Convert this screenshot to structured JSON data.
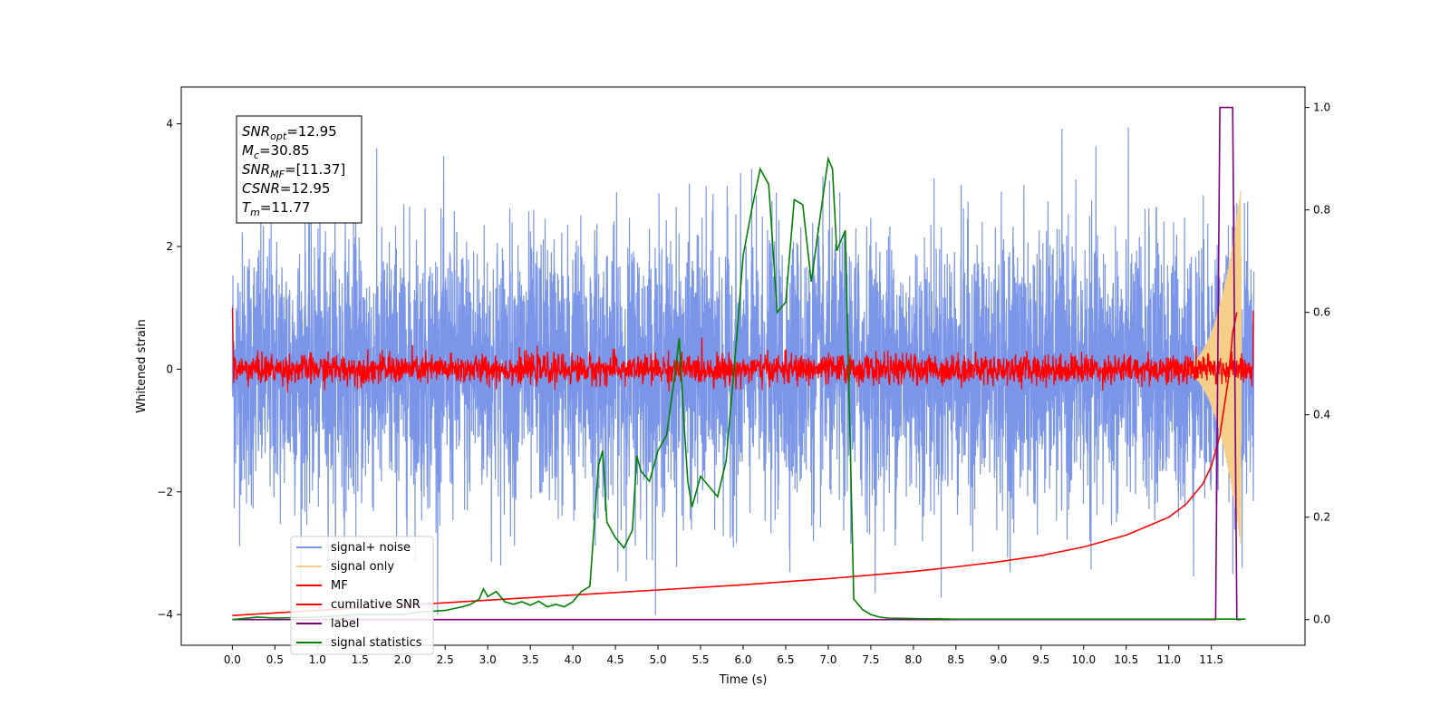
{
  "chart_data": {
    "type": "line",
    "title": "",
    "xlabel": "Time (s)",
    "ylabel_left": "Whitened strain",
    "ylabel_right": "",
    "xlim": [
      -0.6,
      12.6
    ],
    "ylim_left": [
      -4.5,
      4.6
    ],
    "ylim_right": [
      -0.05,
      1.04
    ],
    "x_ticks": [
      "0.0",
      "0.5",
      "1.0",
      "1.5",
      "2.0",
      "2.5",
      "3.0",
      "3.5",
      "4.0",
      "4.5",
      "5.0",
      "5.5",
      "6.0",
      "6.5",
      "7.0",
      "7.5",
      "8.0",
      "8.5",
      "9.0",
      "9.5",
      "10.0",
      "10.5",
      "11.0",
      "11.5"
    ],
    "y_ticks_left": [
      "4",
      "2",
      "0",
      "−2",
      "−4"
    ],
    "y_ticks_right": [
      "1.0",
      "0.8",
      "0.6",
      "0.4",
      "0.2",
      "0.0"
    ],
    "annotation": {
      "lines": [
        {
          "sym": "SNR",
          "sub": "opt",
          "rest": "=12.95"
        },
        {
          "sym": "M",
          "sub": "c",
          "rest": "=30.85"
        },
        {
          "sym": "SNR",
          "sub": "MF",
          "rest": "=[11.37]"
        },
        {
          "sym": "CSNR",
          "sub": "",
          "rest": "=12.95"
        },
        {
          "sym": "T",
          "sub": "m",
          "rest": "=11.77"
        }
      ]
    },
    "legend": {
      "placement": "lower-left",
      "entries": [
        {
          "label": "signal+ noise",
          "color": "#7b96e8"
        },
        {
          "label": "signal only",
          "color": "#f5cf8a"
        },
        {
          "label": "MF",
          "color": "#ff0000"
        },
        {
          "label": "cumilative SNR",
          "color": "#ff0000"
        },
        {
          "label": "label",
          "color": "#800080"
        },
        {
          "label": "signal statistics",
          "color": "#008000"
        }
      ]
    },
    "series": [
      {
        "name": "signal+ noise",
        "axis": "left",
        "style": "noise",
        "x_range": [
          0,
          12.0
        ],
        "amplitude": 1.1,
        "color": "#7b96e8"
      },
      {
        "name": "signal only",
        "axis": "left",
        "style": "chirp",
        "x_range": [
          11.0,
          11.85
        ],
        "max_amplitude": 3.0,
        "color": "#f5cf8a"
      },
      {
        "name": "MF",
        "axis": "left",
        "style": "mf",
        "x_range": [
          0,
          12.0
        ],
        "amplitude": 0.12,
        "color": "#ff0000"
      },
      {
        "name": "cumilative SNR",
        "axis": "right",
        "color": "#ff0000",
        "x": [
          0.0,
          1.0,
          2.0,
          3.0,
          4.0,
          5.0,
          6.0,
          7.0,
          7.5,
          8.0,
          8.5,
          9.0,
          9.5,
          10.0,
          10.5,
          11.0,
          11.2,
          11.4,
          11.5,
          11.6,
          11.7,
          11.75,
          11.8
        ],
        "y": [
          0.008,
          0.018,
          0.028,
          0.038,
          0.048,
          0.058,
          0.068,
          0.08,
          0.087,
          0.094,
          0.103,
          0.113,
          0.125,
          0.142,
          0.165,
          0.2,
          0.225,
          0.265,
          0.3,
          0.36,
          0.47,
          0.56,
          0.6
        ]
      },
      {
        "name": "label",
        "axis": "right",
        "color": "#800080",
        "x": [
          0.0,
          11.55,
          11.6,
          11.75,
          11.8,
          11.85
        ],
        "y": [
          0.0,
          0.0,
          1.0,
          1.0,
          0.0,
          0.0
        ]
      },
      {
        "name": "signal statistics",
        "axis": "right",
        "color": "#008000",
        "x": [
          0.0,
          0.3,
          0.5,
          1.0,
          1.5,
          2.0,
          2.2,
          2.5,
          2.7,
          2.8,
          2.9,
          2.95,
          3.0,
          3.1,
          3.2,
          3.3,
          3.4,
          3.5,
          3.6,
          3.7,
          3.8,
          3.9,
          4.0,
          4.1,
          4.2,
          4.3,
          4.35,
          4.4,
          4.5,
          4.6,
          4.7,
          4.75,
          4.8,
          4.9,
          5.0,
          5.1,
          5.2,
          5.25,
          5.3,
          5.35,
          5.4,
          5.5,
          5.6,
          5.7,
          5.8,
          5.9,
          6.0,
          6.1,
          6.2,
          6.3,
          6.4,
          6.5,
          6.6,
          6.7,
          6.8,
          6.9,
          7.0,
          7.05,
          7.1,
          7.2,
          7.3,
          7.35,
          7.4,
          7.5,
          7.6,
          7.7,
          8.0,
          8.5,
          9.0,
          10.0,
          11.0,
          11.8,
          11.9
        ],
        "y": [
          0.0,
          0.005,
          0.003,
          0.005,
          0.01,
          0.01,
          0.015,
          0.018,
          0.025,
          0.03,
          0.04,
          0.06,
          0.045,
          0.055,
          0.035,
          0.03,
          0.035,
          0.028,
          0.036,
          0.025,
          0.03,
          0.025,
          0.035,
          0.055,
          0.065,
          0.3,
          0.33,
          0.19,
          0.16,
          0.14,
          0.175,
          0.32,
          0.29,
          0.27,
          0.33,
          0.36,
          0.48,
          0.55,
          0.4,
          0.27,
          0.22,
          0.28,
          0.26,
          0.24,
          0.31,
          0.5,
          0.71,
          0.8,
          0.88,
          0.85,
          0.6,
          0.62,
          0.82,
          0.81,
          0.66,
          0.78,
          0.9,
          0.88,
          0.72,
          0.76,
          0.04,
          0.03,
          0.02,
          0.01,
          0.005,
          0.003,
          0.002,
          0.001,
          0.001,
          0.001,
          0.001,
          0.001,
          0.001
        ]
      }
    ]
  }
}
